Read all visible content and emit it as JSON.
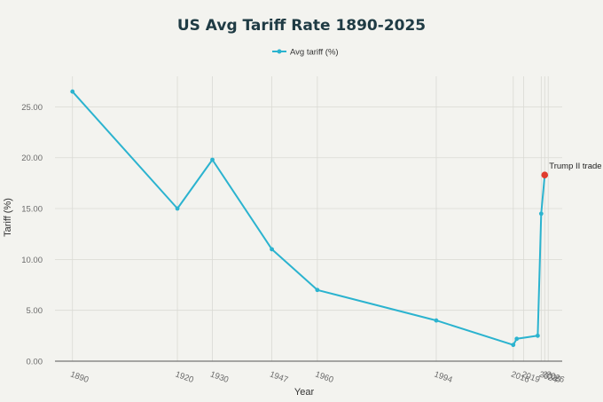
{
  "chart_data": {
    "type": "line",
    "title": "US Avg Tariff Rate 1890-2025",
    "xlabel": "Year",
    "ylabel": "Tariff (%)",
    "legend_position": "top-center",
    "ylim": [
      0,
      28
    ],
    "yticks": [
      0,
      5,
      10,
      15,
      20,
      25
    ],
    "ytick_labels": [
      "0.00",
      "5.00",
      "10.00",
      "15.00",
      "20.00",
      "25.00"
    ],
    "xlim": [
      1885,
      2030
    ],
    "x_ticks": [
      1890,
      1920,
      1930,
      1947,
      1960,
      1994,
      2016,
      2019,
      2024,
      2025,
      2026
    ],
    "series": [
      {
        "name": "Avg tariff (%)",
        "color": "#2bb3cf",
        "x": [
          1890,
          1920,
          1930,
          1947,
          1960,
          1994,
          2016,
          2017,
          2023,
          2024,
          2025
        ],
        "y": [
          26.5,
          15.0,
          19.8,
          11.0,
          7.0,
          4.0,
          1.6,
          2.2,
          2.5,
          14.5,
          18.3
        ]
      }
    ],
    "highlight": {
      "x": 2025,
      "y": 18.3,
      "color": "#e03b2e"
    },
    "annotations": [
      {
        "text": "Trump II trade",
        "x": 2025,
        "y": 18.3
      }
    ]
  }
}
